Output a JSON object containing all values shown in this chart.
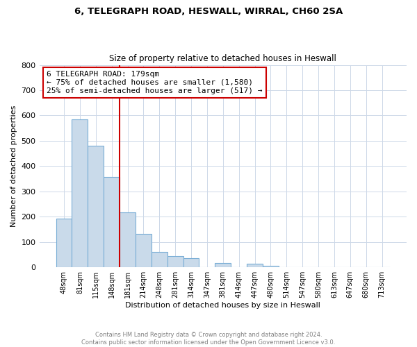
{
  "title1": "6, TELEGRAPH ROAD, HESWALL, WIRRAL, CH60 2SA",
  "title2": "Size of property relative to detached houses in Heswall",
  "xlabel": "Distribution of detached houses by size in Heswall",
  "ylabel": "Number of detached properties",
  "bar_labels": [
    "48sqm",
    "81sqm",
    "115sqm",
    "148sqm",
    "181sqm",
    "214sqm",
    "248sqm",
    "281sqm",
    "314sqm",
    "347sqm",
    "381sqm",
    "414sqm",
    "447sqm",
    "480sqm",
    "514sqm",
    "547sqm",
    "580sqm",
    "613sqm",
    "647sqm",
    "680sqm",
    "713sqm"
  ],
  "bar_values": [
    193,
    585,
    480,
    357,
    218,
    133,
    61,
    44,
    37,
    0,
    17,
    0,
    15,
    7,
    0,
    0,
    0,
    0,
    0,
    0,
    0
  ],
  "bar_color": "#c9daea",
  "bar_edge_color": "#7aaed6",
  "marker_idx": 4,
  "marker_color": "#cc0000",
  "annotation_line1": "6 TELEGRAPH ROAD: 179sqm",
  "annotation_line2": "← 75% of detached houses are smaller (1,580)",
  "annotation_line3": "25% of semi-detached houses are larger (517) →",
  "ylim": [
    0,
    800
  ],
  "yticks": [
    0,
    100,
    200,
    300,
    400,
    500,
    600,
    700,
    800
  ],
  "footer_line1": "Contains HM Land Registry data © Crown copyright and database right 2024.",
  "footer_line2": "Contains public sector information licensed under the Open Government Licence v3.0.",
  "background_color": "#ffffff",
  "grid_color": "#cdd8e8"
}
